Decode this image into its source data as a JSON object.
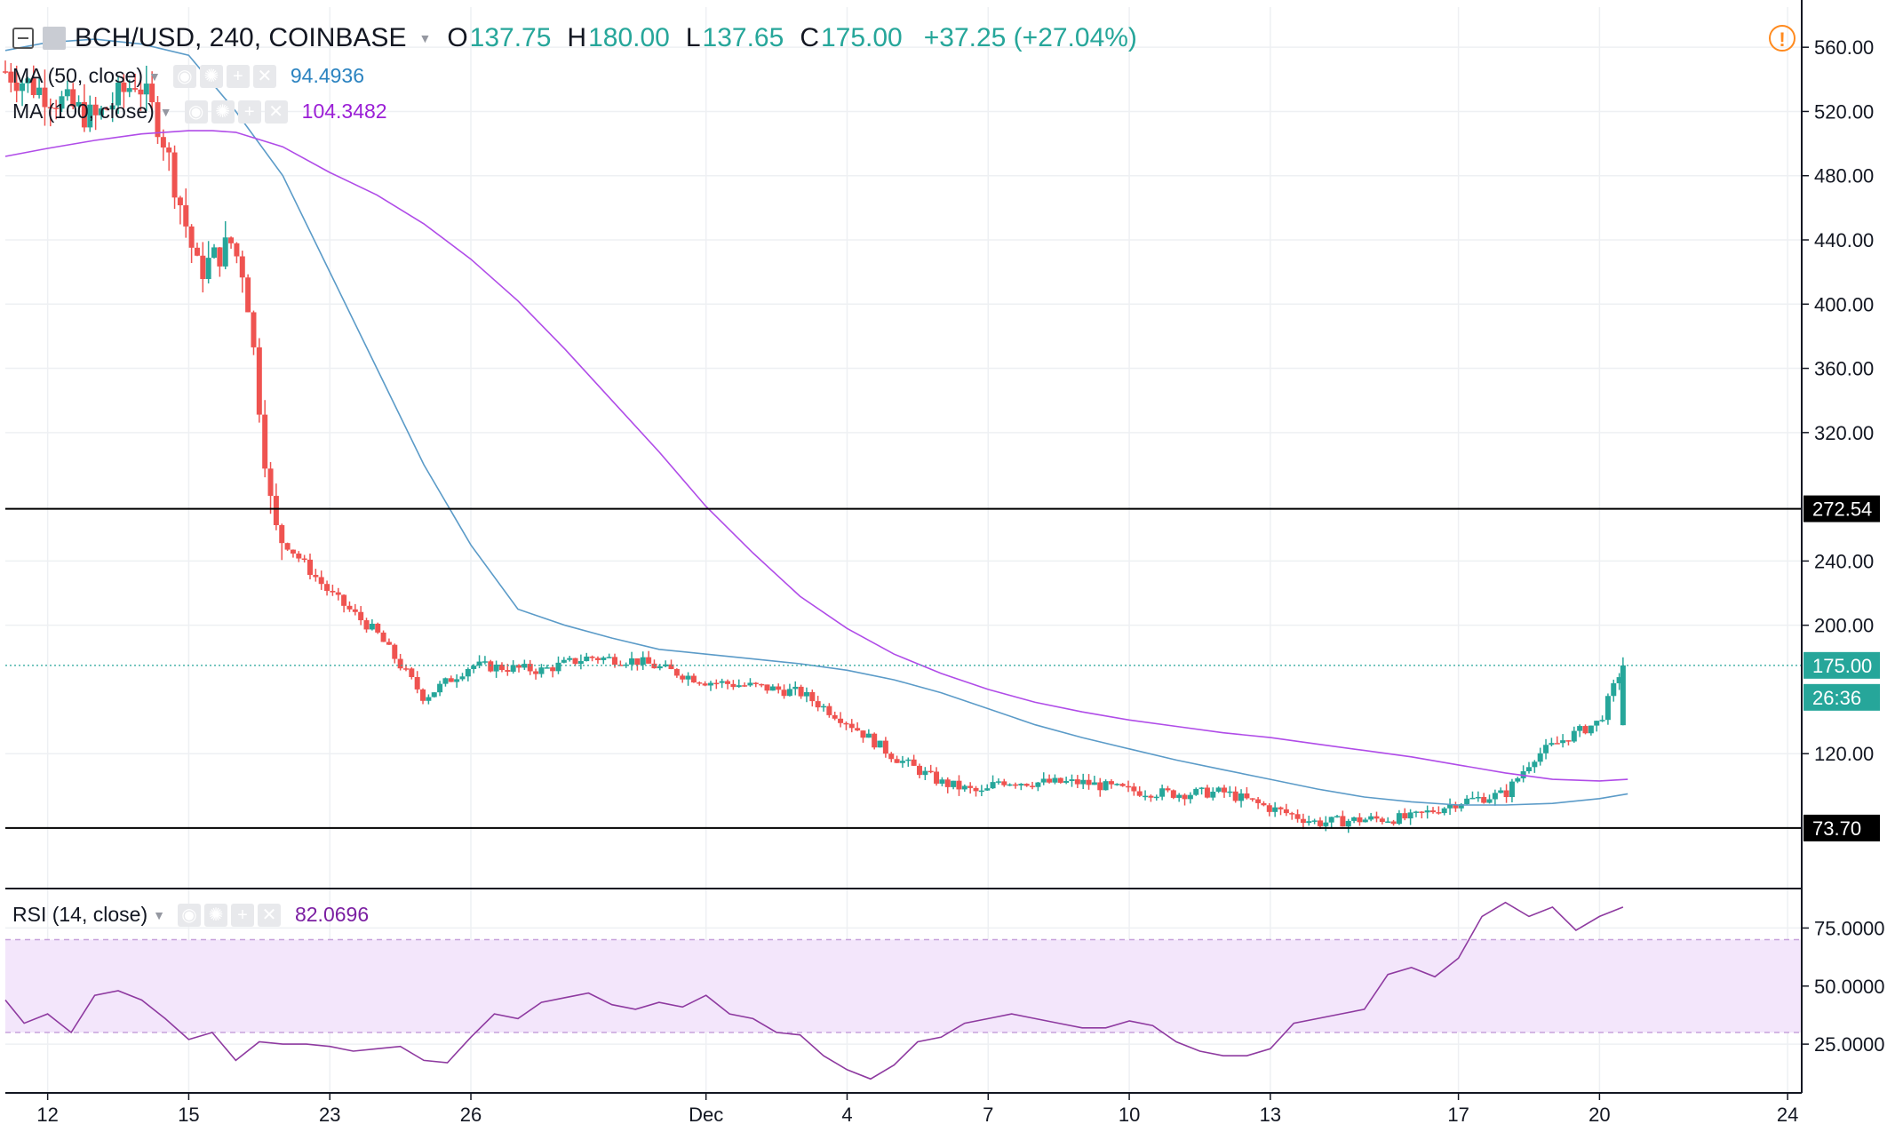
{
  "header": {
    "symbol": "BCH/USD, 240, COINBASE",
    "o_label": "O",
    "o_value": "137.75",
    "h_label": "H",
    "h_value": "180.00",
    "l_label": "L",
    "l_value": "137.65",
    "c_label": "C",
    "c_value": "175.00",
    "change": "+37.25 (+27.04%)"
  },
  "indicators": {
    "ma50": {
      "label": "MA (50, close)",
      "value": "94.4936"
    },
    "ma100": {
      "label": "MA (100, close)",
      "value": "104.3482"
    },
    "rsi": {
      "label": "RSI (14, close)",
      "value": "82.0696"
    }
  },
  "alert_icon": "!",
  "colors": {
    "up": "#26a69a",
    "down": "#ef5350",
    "ma50": "#5b9bc8",
    "ma100": "#b04ce8",
    "rsi": "#8e3aa0",
    "rsi_band": "#f3e6fb",
    "price_tag": "#26a69a"
  },
  "chart_data": [
    {
      "type": "candlestick",
      "title": "BCH/USD, 240, COINBASE",
      "ylim": [
        36,
        585
      ],
      "y_ticks": [
        "560.00",
        "520.00",
        "480.00",
        "440.00",
        "400.00",
        "360.00",
        "320.00",
        "240.00",
        "200.00",
        "120.00"
      ],
      "x_ticks": [
        "12",
        "15",
        "23",
        "26",
        "Dec",
        "4",
        "7",
        "10",
        "13",
        "17",
        "20",
        "24"
      ],
      "x_tick_pos": [
        0,
        3,
        6,
        9,
        14,
        17,
        20,
        23,
        26,
        30,
        33,
        37
      ],
      "xlim": [
        -0.9,
        37.3
      ],
      "horizontal_lines": [
        {
          "value": 272.54,
          "label": "272.54"
        },
        {
          "value": 73.7,
          "label": "73.70"
        }
      ],
      "current_price": {
        "value": 175.0,
        "label": "175.00",
        "countdown": "26:36"
      },
      "candle_anchors": {
        "x": [
          -0.9,
          1.0,
          1.9,
          2.4,
          3.2,
          3.9,
          4.2,
          4.8,
          6.0,
          7.0,
          8.0,
          9.0,
          10.5,
          11.5,
          12.5,
          14.0,
          15.0,
          16.0,
          17.0,
          18.0,
          19.0,
          19.9,
          20.2,
          21.0,
          22.0,
          23.0,
          24.0,
          25.0,
          26.0,
          27.0,
          28.0,
          29.0,
          30.0,
          31.0,
          31.6,
          32.3,
          33.0,
          33.5
        ],
        "close": [
          545,
          515,
          540,
          510,
          420,
          438,
          418,
          260,
          220,
          195,
          155,
          175,
          172,
          180,
          178,
          165,
          162,
          158,
          140,
          118,
          102,
          95,
          103,
          102,
          102,
          97,
          95,
          96,
          86,
          77,
          79,
          80,
          90,
          95,
          118,
          130,
          140,
          175
        ]
      },
      "ma_lines": {
        "ma50": {
          "x": [
            -0.9,
            0.0,
            1.0,
            2.0,
            3.0,
            4.0,
            5.0,
            6.0,
            7.0,
            8.0,
            9.0,
            10.0,
            11.0,
            12.0,
            13.0,
            14.0,
            15.0,
            16.0,
            17.0,
            18.0,
            19.0,
            20.0,
            21.0,
            22.0,
            23.0,
            24.0,
            25.0,
            26.0,
            27.0,
            28.0,
            29.0,
            30.0,
            31.0,
            32.0,
            33.0,
            33.6
          ],
          "y": [
            558,
            563,
            565,
            562,
            555,
            520,
            480,
            420,
            360,
            300,
            250,
            210,
            200,
            192,
            185,
            182,
            179,
            176,
            172,
            166,
            158,
            148,
            138,
            130,
            123,
            116,
            110,
            104,
            98,
            93,
            90,
            88,
            88,
            89,
            92,
            95
          ]
        },
        "ma100": {
          "x": [
            -0.9,
            0.0,
            1.0,
            2.0,
            3.0,
            3.5,
            4.0,
            5.0,
            6.0,
            7.0,
            8.0,
            9.0,
            10.0,
            11.0,
            12.0,
            13.0,
            14.0,
            15.0,
            16.0,
            17.0,
            18.0,
            19.0,
            20.0,
            21.0,
            22.0,
            23.0,
            24.0,
            25.0,
            26.0,
            27.0,
            28.0,
            29.0,
            30.0,
            31.0,
            32.0,
            33.0,
            33.6
          ],
          "y": [
            492,
            497,
            502,
            506,
            508,
            508,
            507,
            498,
            482,
            468,
            450,
            428,
            402,
            372,
            340,
            308,
            274,
            245,
            218,
            198,
            182,
            170,
            160,
            152,
            146,
            141,
            137,
            133,
            130,
            126,
            122,
            118,
            113,
            108,
            104,
            103,
            104
          ]
        }
      }
    },
    {
      "type": "line",
      "title": "RSI (14, close)",
      "ylim": [
        4,
        92
      ],
      "y_ticks": [
        "75.0000",
        "50.0000",
        "25.0000"
      ],
      "bands": [
        30,
        70
      ],
      "x": [
        -0.9,
        -0.5,
        0.0,
        0.5,
        1.0,
        1.5,
        2.0,
        2.5,
        3.0,
        3.5,
        4.0,
        4.5,
        5.0,
        5.5,
        6.0,
        6.5,
        7.0,
        7.5,
        8.0,
        8.5,
        9.0,
        9.5,
        10.0,
        10.5,
        11.0,
        11.5,
        12.0,
        12.5,
        13.0,
        13.5,
        14.0,
        14.5,
        15.0,
        15.5,
        16.0,
        16.5,
        17.0,
        17.5,
        18.0,
        18.5,
        19.0,
        19.5,
        20.0,
        20.5,
        21.0,
        21.5,
        22.0,
        22.5,
        23.0,
        23.5,
        24.0,
        24.5,
        25.0,
        25.5,
        26.0,
        26.5,
        27.0,
        27.5,
        28.0,
        28.5,
        29.0,
        29.5,
        30.0,
        30.5,
        31.0,
        31.5,
        32.0,
        32.5,
        33.0,
        33.5
      ],
      "y": [
        44,
        34,
        38,
        30,
        46,
        48,
        44,
        36,
        27,
        30,
        18,
        26,
        25,
        25,
        24,
        22,
        23,
        24,
        18,
        17,
        28,
        38,
        36,
        43,
        45,
        47,
        42,
        40,
        43,
        41,
        46,
        38,
        36,
        30,
        29,
        20,
        14,
        10,
        16,
        26,
        28,
        34,
        36,
        38,
        36,
        34,
        32,
        32,
        35,
        33,
        26,
        22,
        20,
        20,
        23,
        34,
        36,
        38,
        40,
        55,
        58,
        54,
        62,
        80,
        86,
        80,
        84,
        74,
        80,
        84
      ]
    }
  ]
}
